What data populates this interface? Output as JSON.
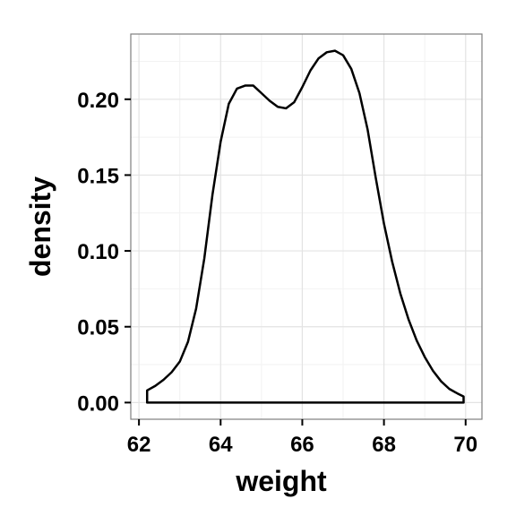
{
  "chart_data": {
    "type": "area",
    "title": "",
    "xlabel": "weight",
    "ylabel": "density",
    "xlim": [
      61.8,
      70.4
    ],
    "ylim": [
      -0.011,
      0.243
    ],
    "x_ticks": [
      {
        "value": 62,
        "label": "62"
      },
      {
        "value": 64,
        "label": "64"
      },
      {
        "value": 66,
        "label": "66"
      },
      {
        "value": 68,
        "label": "68"
      },
      {
        "value": 70,
        "label": "70"
      }
    ],
    "y_ticks": [
      {
        "value": 0.0,
        "label": "0.00"
      },
      {
        "value": 0.05,
        "label": "0.05"
      },
      {
        "value": 0.1,
        "label": "0.10"
      },
      {
        "value": 0.15,
        "label": "0.15"
      },
      {
        "value": 0.2,
        "label": "0.20"
      }
    ],
    "grid": true,
    "legend": "none",
    "series": [
      {
        "color": "#000000",
        "fill": "none",
        "x": [
          62.2,
          62.4,
          62.6,
          62.8,
          63.0,
          63.2,
          63.4,
          63.6,
          63.8,
          64.0,
          64.2,
          64.4,
          64.6,
          64.8,
          65.0,
          65.2,
          65.4,
          65.6,
          65.8,
          66.0,
          66.2,
          66.4,
          66.6,
          66.8,
          67.0,
          67.2,
          67.4,
          67.6,
          67.8,
          68.0,
          68.2,
          68.4,
          68.6,
          68.8,
          69.0,
          69.2,
          69.4,
          69.6,
          69.8,
          69.95
        ],
        "y": [
          0.008,
          0.011,
          0.015,
          0.02,
          0.027,
          0.04,
          0.062,
          0.095,
          0.137,
          0.172,
          0.197,
          0.207,
          0.209,
          0.209,
          0.204,
          0.199,
          0.195,
          0.194,
          0.198,
          0.208,
          0.219,
          0.227,
          0.231,
          0.232,
          0.229,
          0.22,
          0.204,
          0.18,
          0.148,
          0.118,
          0.093,
          0.072,
          0.055,
          0.041,
          0.03,
          0.021,
          0.014,
          0.009,
          0.006,
          0.004
        ]
      }
    ]
  }
}
